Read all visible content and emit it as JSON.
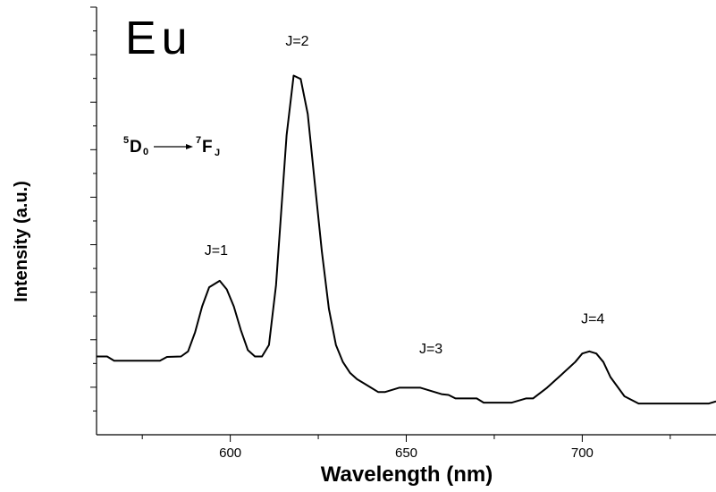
{
  "chart_data": {
    "type": "line",
    "title": "Eu",
    "xlabel": "Wavelength (nm)",
    "ylabel": "Intensity (a.u.)",
    "xlim": [
      562,
      738
    ],
    "ylim": [
      0,
      1
    ],
    "x_ticks": [
      600,
      650,
      700
    ],
    "x_tick_labels": [
      "600",
      "650",
      "700"
    ],
    "y_tick_labels": false,
    "grid": false,
    "series": [
      {
        "x": [
          562,
          565,
          567,
          580,
          582,
          586,
          588,
          590,
          592,
          594,
          597,
          599,
          601,
          603,
          605,
          607,
          609,
          611,
          613,
          616,
          618,
          620,
          622,
          624,
          626,
          628,
          630,
          632,
          634,
          636,
          638,
          640,
          642,
          644,
          648,
          650,
          654,
          660,
          662,
          664,
          670,
          672,
          680,
          684,
          686,
          690,
          694,
          698,
          700,
          702,
          704,
          706,
          708,
          712,
          716,
          730,
          736,
          738
        ],
        "y": [
          0.183,
          0.183,
          0.173,
          0.173,
          0.182,
          0.183,
          0.195,
          0.24,
          0.3,
          0.345,
          0.36,
          0.34,
          0.3,
          0.245,
          0.198,
          0.183,
          0.183,
          0.21,
          0.35,
          0.7,
          0.84,
          0.832,
          0.75,
          0.59,
          0.43,
          0.295,
          0.21,
          0.17,
          0.145,
          0.13,
          0.12,
          0.11,
          0.1,
          0.1,
          0.11,
          0.11,
          0.11,
          0.095,
          0.093,
          0.085,
          0.085,
          0.075,
          0.075,
          0.085,
          0.085,
          0.11,
          0.14,
          0.17,
          0.19,
          0.195,
          0.19,
          0.17,
          0.135,
          0.09,
          0.073,
          0.073,
          0.073,
          0.078
        ]
      }
    ],
    "annotations": [
      {
        "text": "J=1",
        "x": 596,
        "y": 0.42
      },
      {
        "text": "J=2",
        "x": 619,
        "y": 0.91
      },
      {
        "text": "J=3",
        "x": 657,
        "y": 0.19
      },
      {
        "text": "J=4",
        "x": 703,
        "y": 0.26
      }
    ],
    "transition_label": {
      "upper_sup": "5",
      "upper_main": "D",
      "upper_sub": "0",
      "lower_sup": "7",
      "lower_main": "F",
      "lower_sub": "J"
    }
  }
}
